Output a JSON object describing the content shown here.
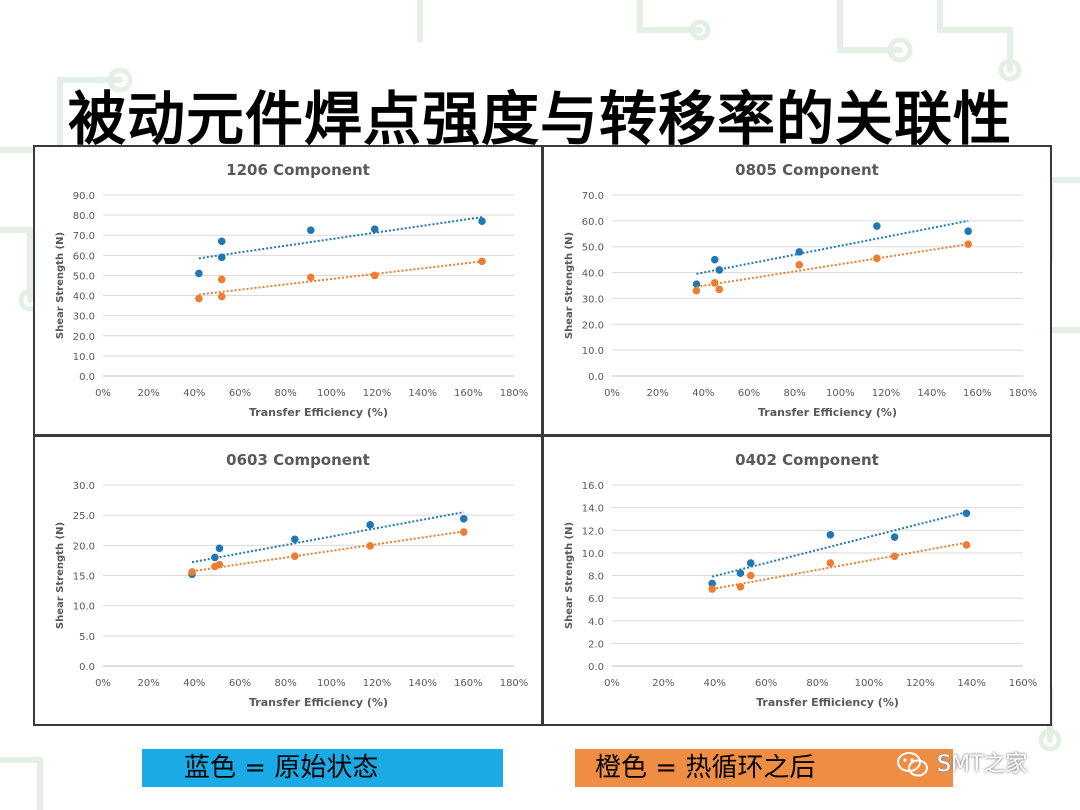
{
  "page": {
    "title": "被动元件焊点强度与转移率的关联性",
    "legend_blue": "蓝色 = 原始状态",
    "legend_orange": "橙色 = 热循环之后",
    "watermark": "SMT之家",
    "colors": {
      "blue": "#1F77B4",
      "orange": "#ED7D31",
      "legend_blue_bg": "#1AABE6",
      "legend_orange_bg": "#EF8E43"
    }
  },
  "chart_data": [
    {
      "type": "scatter",
      "title": "1206 Component",
      "xlabel": "Transfer Efficiency (%)",
      "ylabel": "Shear Strength (N)",
      "xlim": [
        0,
        180
      ],
      "ylim": [
        0,
        90
      ],
      "x_ticks": [
        "0%",
        "20%",
        "40%",
        "60%",
        "80%",
        "100%",
        "120%",
        "140%",
        "160%",
        "180%"
      ],
      "y_ticks": [
        "0.0",
        "10.0",
        "20.0",
        "30.0",
        "40.0",
        "50.0",
        "60.0",
        "70.0",
        "80.0",
        "90.0"
      ],
      "grid": true,
      "series": [
        {
          "color": "#1F77B4",
          "points": [
            [
              42,
              51
            ],
            [
              52,
              67
            ],
            [
              52,
              59
            ],
            [
              91,
              72.5
            ],
            [
              119,
              73
            ],
            [
              166,
              77
            ]
          ],
          "trend": [
            [
              42,
              58.5
            ],
            [
              166,
              79
            ]
          ]
        },
        {
          "color": "#ED7D31",
          "points": [
            [
              42,
              38.5
            ],
            [
              52,
              48
            ],
            [
              52,
              39.5
            ],
            [
              91,
              49
            ],
            [
              119,
              50
            ],
            [
              166,
              57
            ]
          ],
          "trend": [
            [
              42,
              40.5
            ],
            [
              166,
              57
            ]
          ]
        }
      ]
    },
    {
      "type": "scatter",
      "title": "0805 Component",
      "xlabel": "Transfer Efficiency (%)",
      "ylabel": "Shear Strength (N)",
      "xlim": [
        0,
        180
      ],
      "ylim": [
        0,
        70
      ],
      "x_ticks": [
        "0%",
        "20%",
        "40%",
        "60%",
        "80%",
        "100%",
        "120%",
        "140%",
        "160%",
        "180%"
      ],
      "y_ticks": [
        "0.0",
        "10.0",
        "20.0",
        "30.0",
        "40.0",
        "50.0",
        "60.0",
        "70.0"
      ],
      "grid": true,
      "series": [
        {
          "color": "#1F77B4",
          "points": [
            [
              37,
              35.5
            ],
            [
              45,
              45
            ],
            [
              47,
              41
            ],
            [
              82,
              48
            ],
            [
              116,
              58
            ],
            [
              156,
              56
            ]
          ],
          "trend": [
            [
              37,
              39.5
            ],
            [
              156,
              60
            ]
          ]
        },
        {
          "color": "#ED7D31",
          "points": [
            [
              37,
              33
            ],
            [
              45,
              36
            ],
            [
              47,
              33.5
            ],
            [
              82,
              43
            ],
            [
              116,
              45.5
            ],
            [
              156,
              51
            ]
          ],
          "trend": [
            [
              37,
              34.5
            ],
            [
              156,
              51
            ]
          ]
        }
      ]
    },
    {
      "type": "scatter",
      "title": "0603 Component",
      "xlabel": "Transfer Efficiency (%)",
      "ylabel": "Shear Strength (N)",
      "xlim": [
        0,
        180
      ],
      "ylim": [
        0,
        30
      ],
      "x_ticks": [
        "0%",
        "20%",
        "40%",
        "60%",
        "80%",
        "100%",
        "120%",
        "140%",
        "160%",
        "180%"
      ],
      "y_ticks": [
        "0.0",
        "5.0",
        "10.0",
        "15.0",
        "20.0",
        "25.0",
        "30.0"
      ],
      "grid": true,
      "series": [
        {
          "color": "#1F77B4",
          "points": [
            [
              39,
              15.2
            ],
            [
              49,
              18
            ],
            [
              51,
              19.5
            ],
            [
              84,
              21
            ],
            [
              117,
              23.4
            ],
            [
              158,
              24.4
            ]
          ],
          "trend": [
            [
              39,
              17.2
            ],
            [
              158,
              25.5
            ]
          ]
        },
        {
          "color": "#ED7D31",
          "points": [
            [
              39,
              15.6
            ],
            [
              49,
              16.5
            ],
            [
              51,
              16.8
            ],
            [
              84,
              18.2
            ],
            [
              117,
              19.9
            ],
            [
              158,
              22.2
            ]
          ],
          "trend": [
            [
              39,
              15.7
            ],
            [
              158,
              22.3
            ]
          ]
        }
      ]
    },
    {
      "type": "scatter",
      "title": "0402 Component",
      "xlabel": "Transfer Effiiciency (%)",
      "ylabel": "Shear Strength (N)",
      "xlim": [
        0,
        160
      ],
      "ylim": [
        0,
        16
      ],
      "x_ticks": [
        "0%",
        "20%",
        "40%",
        "60%",
        "80%",
        "100%",
        "120%",
        "140%",
        "160%"
      ],
      "y_ticks": [
        "0.0",
        "2.0",
        "4.0",
        "6.0",
        "8.0",
        "10.0",
        "12.0",
        "14.0",
        "16.0"
      ],
      "grid": true,
      "series": [
        {
          "color": "#1F77B4",
          "points": [
            [
              39,
              7.3
            ],
            [
              50,
              8.2
            ],
            [
              54,
              9.1
            ],
            [
              85,
              11.6
            ],
            [
              110,
              11.4
            ],
            [
              138,
              13.5
            ]
          ],
          "trend": [
            [
              39,
              7.9
            ],
            [
              138,
              13.6
            ]
          ]
        },
        {
          "color": "#ED7D31",
          "points": [
            [
              39,
              6.8
            ],
            [
              50,
              7
            ],
            [
              54,
              8
            ],
            [
              85,
              9.1
            ],
            [
              110,
              9.7
            ],
            [
              138,
              10.7
            ]
          ],
          "trend": [
            [
              39,
              6.8
            ],
            [
              138,
              10.9
            ]
          ]
        }
      ]
    }
  ]
}
